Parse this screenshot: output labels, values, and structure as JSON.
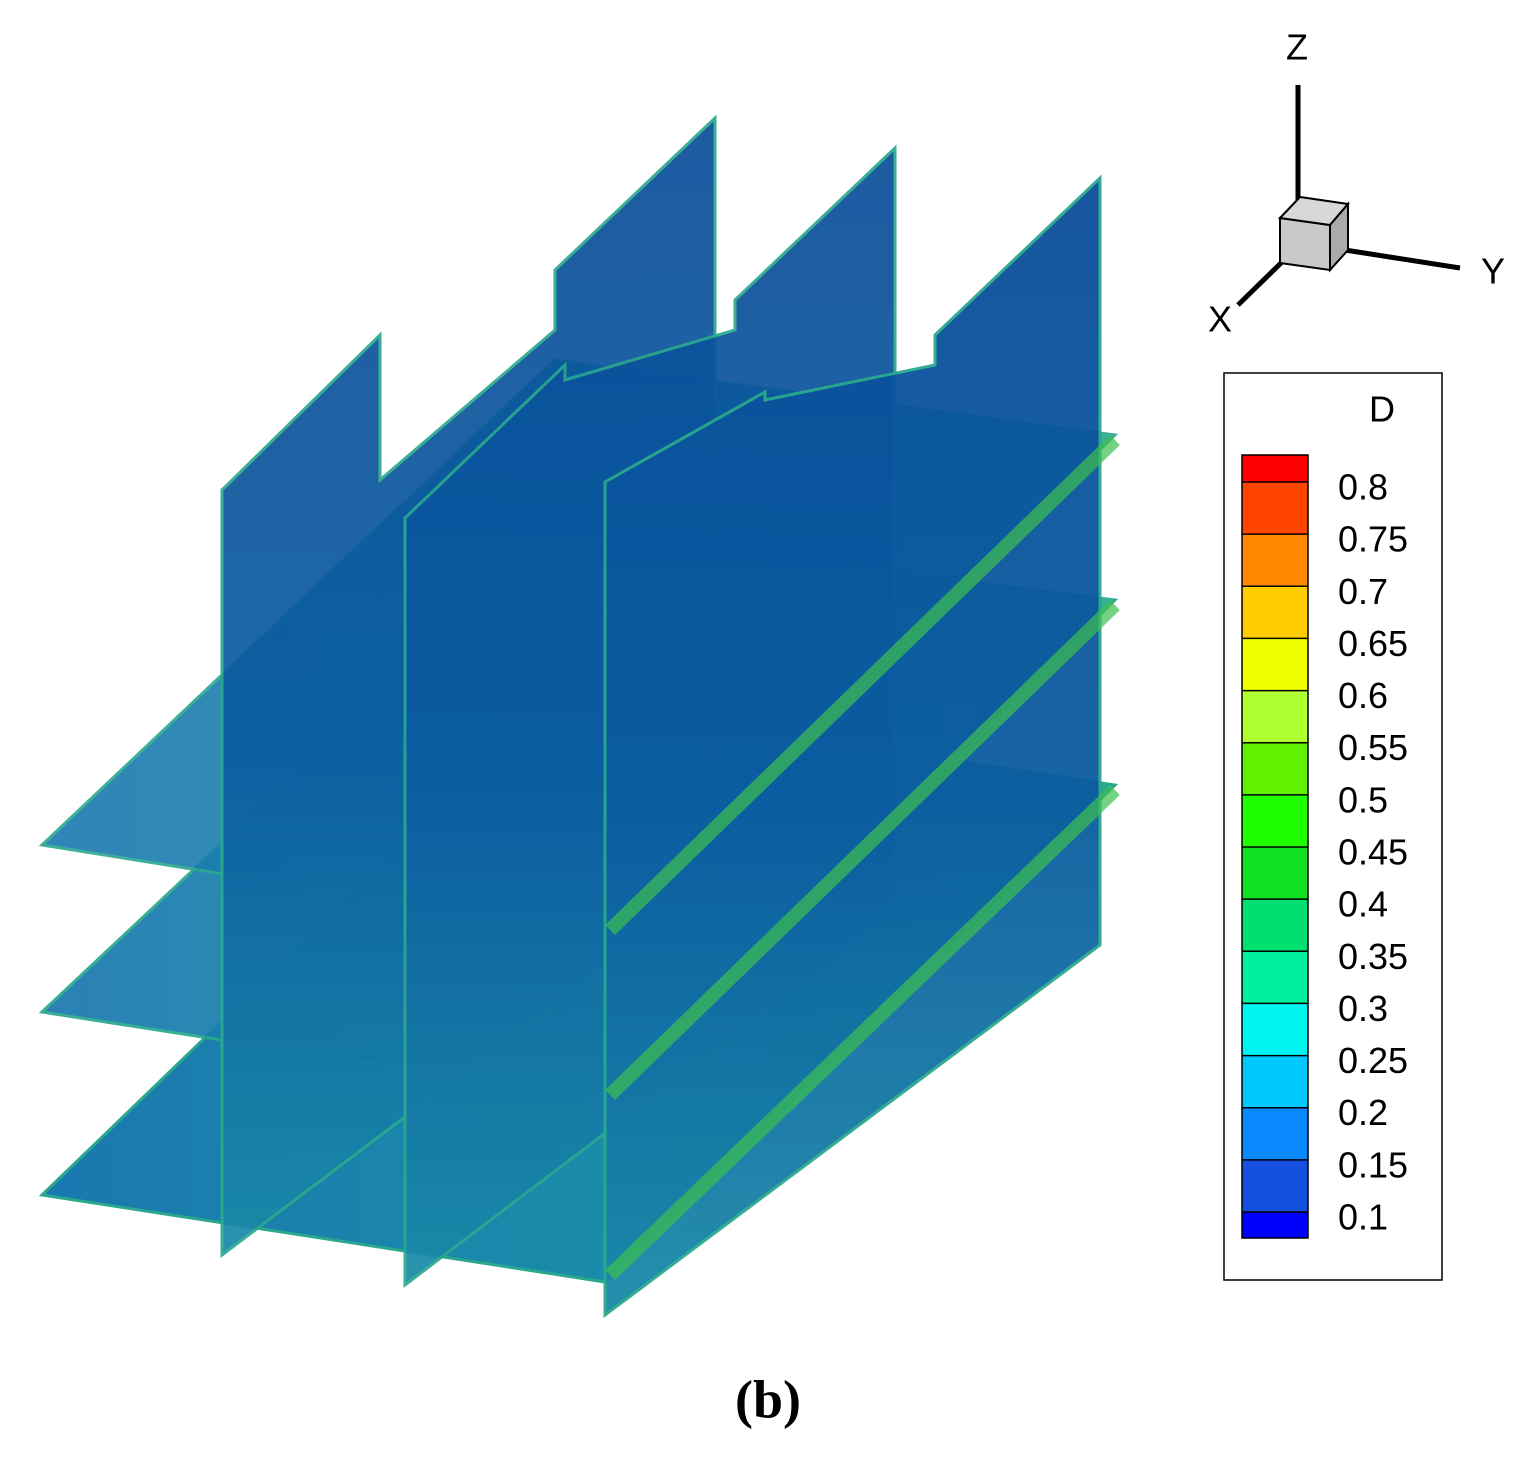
{
  "chart_data": {
    "type": "contour3d",
    "axis_labels": {
      "z": "Z",
      "y": "Y",
      "x": "X"
    },
    "colorbar": {
      "title": "D",
      "levels": [
        0.1,
        0.15,
        0.2,
        0.25,
        0.3,
        0.35,
        0.4,
        0.45,
        0.5,
        0.55,
        0.6,
        0.65,
        0.7,
        0.75,
        0.8
      ],
      "colors": [
        "#0000ff",
        "#1550e0",
        "#0a88ff",
        "#00c8ff",
        "#00f5f0",
        "#00f0a0",
        "#00e070",
        "#10e020",
        "#20ff00",
        "#60f000",
        "#b0ff30",
        "#f0ff00",
        "#ffcc00",
        "#ff8800",
        "#ff4400",
        "#ff0000"
      ]
    },
    "caption": "(b)"
  }
}
